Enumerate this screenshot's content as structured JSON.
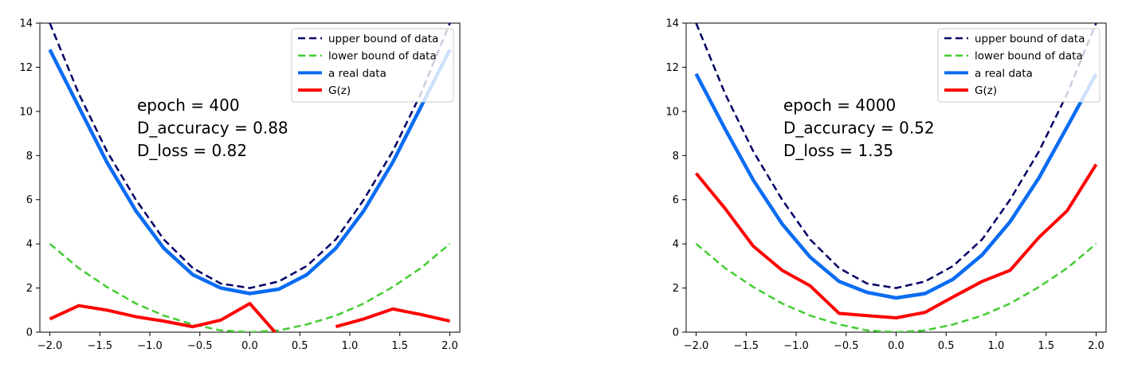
{
  "chart_data": [
    {
      "type": "line",
      "xlim": [
        -2.1,
        2.1
      ],
      "ylim": [
        0,
        14
      ],
      "xticks": [
        "−2.0",
        "−1.5",
        "−1.0",
        "−0.5",
        "0.0",
        "0.5",
        "1.0",
        "1.5",
        "2.0"
      ],
      "xtick_values": [
        -2.0,
        -1.5,
        -1.0,
        -0.5,
        0.0,
        0.5,
        1.0,
        1.5,
        2.0
      ],
      "yticks": [
        "0",
        "2",
        "4",
        "6",
        "8",
        "10",
        "12",
        "14"
      ],
      "ytick_values": [
        0,
        2,
        4,
        6,
        8,
        10,
        12,
        14
      ],
      "grid": false,
      "legend_position": "top-right",
      "annotations": [
        "epoch = 400",
        "D_accuracy = 0.88",
        "D_loss = 0.82"
      ],
      "x": [
        -2.0,
        -1.71,
        -1.43,
        -1.14,
        -0.86,
        -0.57,
        -0.29,
        0.0,
        0.29,
        0.57,
        0.86,
        1.14,
        1.43,
        1.71,
        2.0
      ],
      "series": [
        {
          "name": "upper bound of data",
          "color": "#000066",
          "style": "dashed",
          "values": [
            14.0,
            10.8,
            8.2,
            6.0,
            4.2,
            2.9,
            2.2,
            2.0,
            2.3,
            3.0,
            4.2,
            6.0,
            8.2,
            10.8,
            14.0
          ]
        },
        {
          "name": "lower bound of data",
          "color": "#44cc33",
          "style": "dashed",
          "values": [
            4.0,
            2.9,
            2.05,
            1.3,
            0.75,
            0.35,
            0.08,
            0.0,
            0.08,
            0.35,
            0.75,
            1.3,
            2.05,
            2.9,
            4.0
          ]
        },
        {
          "name": "a real data",
          "color": "#0a6cf2",
          "style": "solid",
          "values": [
            12.8,
            10.2,
            7.7,
            5.5,
            3.8,
            2.6,
            2.0,
            1.75,
            1.95,
            2.6,
            3.8,
            5.5,
            7.7,
            10.2,
            12.8
          ]
        },
        {
          "name": "G(z)",
          "color": "#ff0000",
          "style": "solid",
          "values": [
            0.6,
            1.2,
            1.0,
            0.7,
            0.5,
            0.25,
            0.55,
            1.3,
            -0.2,
            null,
            0.25,
            0.6,
            1.05,
            0.8,
            0.5
          ]
        }
      ]
    },
    {
      "type": "line",
      "xlim": [
        -2.1,
        2.1
      ],
      "ylim": [
        0,
        14
      ],
      "xticks": [
        "−2.0",
        "−1.5",
        "−1.0",
        "−0.5",
        "0.0",
        "0.5",
        "1.0",
        "1.5",
        "2.0"
      ],
      "xtick_values": [
        -2.0,
        -1.5,
        -1.0,
        -0.5,
        0.0,
        0.5,
        1.0,
        1.5,
        2.0
      ],
      "yticks": [
        "0",
        "2",
        "4",
        "6",
        "8",
        "10",
        "12",
        "14"
      ],
      "ytick_values": [
        0,
        2,
        4,
        6,
        8,
        10,
        12,
        14
      ],
      "grid": false,
      "legend_position": "top-right",
      "annotations": [
        "epoch = 4000",
        "D_accuracy = 0.52",
        "D_loss = 1.35"
      ],
      "x": [
        -2.0,
        -1.71,
        -1.43,
        -1.14,
        -0.86,
        -0.57,
        -0.29,
        0.0,
        0.29,
        0.57,
        0.86,
        1.14,
        1.43,
        1.71,
        2.0
      ],
      "series": [
        {
          "name": "upper bound of data",
          "color": "#000066",
          "style": "dashed",
          "values": [
            14.0,
            10.8,
            8.2,
            6.0,
            4.2,
            2.9,
            2.2,
            2.0,
            2.3,
            3.0,
            4.2,
            6.0,
            8.2,
            10.8,
            14.0
          ]
        },
        {
          "name": "lower bound of data",
          "color": "#44cc33",
          "style": "dashed",
          "values": [
            4.0,
            2.9,
            2.05,
            1.3,
            0.75,
            0.35,
            0.08,
            0.0,
            0.08,
            0.35,
            0.75,
            1.3,
            2.05,
            2.9,
            4.0
          ]
        },
        {
          "name": "a real data",
          "color": "#0a6cf2",
          "style": "solid",
          "values": [
            11.7,
            9.2,
            6.9,
            4.9,
            3.4,
            2.3,
            1.8,
            1.55,
            1.75,
            2.4,
            3.5,
            5.0,
            7.0,
            9.3,
            11.7
          ]
        },
        {
          "name": "G(z)",
          "color": "#ff0000",
          "style": "solid",
          "values": [
            7.2,
            5.6,
            3.9,
            2.8,
            2.1,
            0.85,
            0.75,
            0.65,
            0.9,
            1.6,
            2.3,
            2.8,
            4.3,
            5.5,
            7.6
          ]
        }
      ]
    }
  ]
}
